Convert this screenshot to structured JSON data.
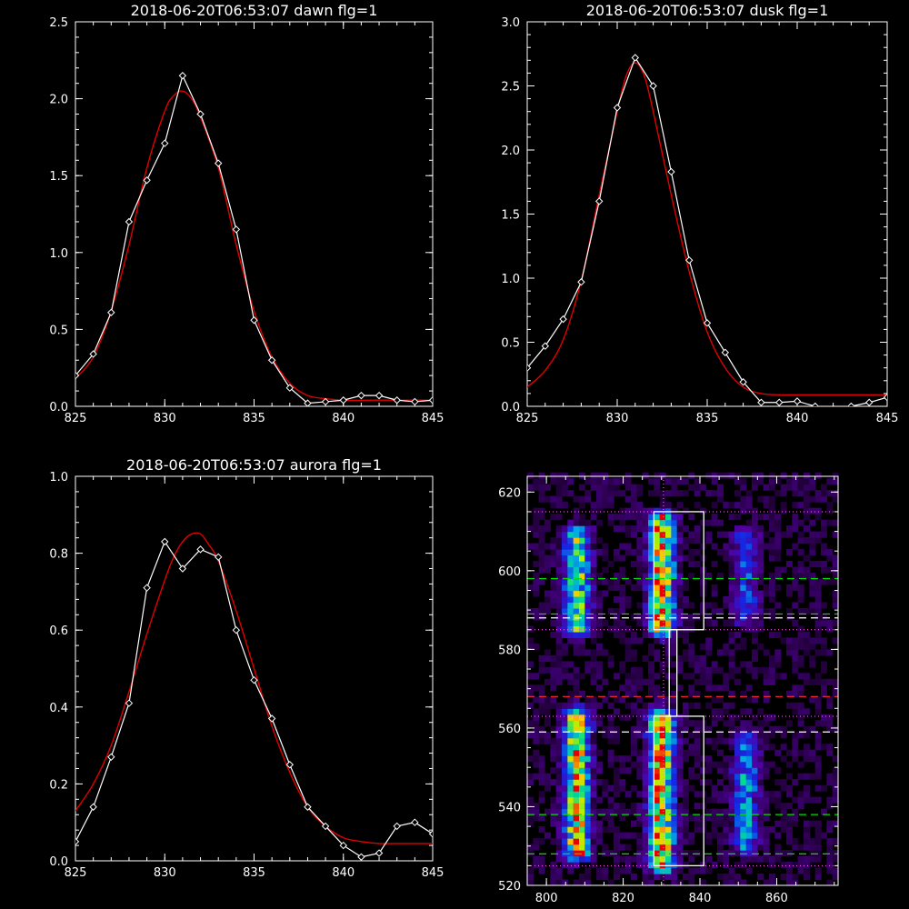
{
  "chart_data": [
    {
      "type": "line",
      "title": "2018-06-20T06:53:07 dawn flg=1",
      "xlim": [
        825,
        845
      ],
      "ylim": [
        0,
        2.5
      ],
      "xticks": [
        "825",
        "830",
        "835",
        "840",
        "845"
      ],
      "yticks": [
        "0.0",
        "0.5",
        "1.0",
        "1.5",
        "2.0",
        "2.5"
      ],
      "series": [
        {
          "role": "data",
          "color": "#ffffff",
          "marker": "diamond",
          "x": [
            825,
            826,
            827,
            828,
            829,
            830,
            831,
            832,
            833,
            834,
            835,
            836,
            837,
            838,
            839,
            840,
            841,
            842,
            843,
            844,
            845
          ],
          "y": [
            0.2,
            0.34,
            0.61,
            1.2,
            1.47,
            1.71,
            2.15,
            1.9,
            1.58,
            1.15,
            0.56,
            0.3,
            0.12,
            0.02,
            0.03,
            0.04,
            0.07,
            0.07,
            0.04,
            0.03,
            0.04
          ]
        },
        {
          "role": "fit",
          "color": "#e00000",
          "x": [
            825,
            826,
            827,
            828,
            829,
            830,
            830.5,
            831,
            831.5,
            832,
            833,
            834,
            835,
            836,
            837,
            838,
            839,
            840,
            842,
            845
          ],
          "y": [
            0.18,
            0.32,
            0.62,
            1.05,
            1.55,
            1.92,
            2.02,
            2.05,
            2.0,
            1.88,
            1.55,
            1.05,
            0.62,
            0.32,
            0.15,
            0.07,
            0.05,
            0.04,
            0.04,
            0.04
          ]
        }
      ]
    },
    {
      "type": "line",
      "title": "2018-06-20T06:53:07 dusk flg=1",
      "xlim": [
        825,
        845
      ],
      "ylim": [
        0,
        3.0
      ],
      "xticks": [
        "825",
        "830",
        "835",
        "840",
        "845"
      ],
      "yticks": [
        "0.0",
        "0.5",
        "1.0",
        "1.5",
        "2.0",
        "2.5",
        "3.0"
      ],
      "series": [
        {
          "role": "data",
          "color": "#ffffff",
          "marker": "diamond",
          "x": [
            825,
            826,
            827,
            828,
            829,
            830,
            831,
            832,
            833,
            834,
            835,
            836,
            837,
            838,
            839,
            840,
            841,
            842,
            843,
            844,
            845
          ],
          "y": [
            0.3,
            0.47,
            0.68,
            0.97,
            1.6,
            2.33,
            2.72,
            2.5,
            1.83,
            1.14,
            0.65,
            0.42,
            0.19,
            0.03,
            0.03,
            0.04,
            0.0,
            -0.02,
            0.0,
            0.03,
            0.07
          ]
        },
        {
          "role": "fit",
          "color": "#e00000",
          "x": [
            825,
            826,
            827,
            828,
            829,
            830,
            830.5,
            831,
            831.5,
            832,
            833,
            834,
            835,
            836,
            837,
            838,
            839,
            840,
            842,
            845
          ],
          "y": [
            0.15,
            0.28,
            0.52,
            0.98,
            1.65,
            2.3,
            2.58,
            2.68,
            2.58,
            2.3,
            1.65,
            1.05,
            0.58,
            0.3,
            0.15,
            0.1,
            0.09,
            0.09,
            0.09,
            0.09
          ]
        }
      ]
    },
    {
      "type": "line",
      "title": "2018-06-20T06:53:07 aurora flg=1",
      "xlim": [
        825,
        845
      ],
      "ylim": [
        0,
        1.0
      ],
      "xticks": [
        "825",
        "830",
        "835",
        "840",
        "845"
      ],
      "yticks": [
        "0.0",
        "0.2",
        "0.4",
        "0.6",
        "0.8",
        "1.0"
      ],
      "series": [
        {
          "role": "data",
          "color": "#ffffff",
          "marker": "diamond",
          "x": [
            825,
            826,
            827,
            828,
            829,
            830,
            831,
            832,
            833,
            834,
            835,
            836,
            837,
            838,
            839,
            840,
            841,
            842,
            843,
            844,
            845
          ],
          "y": [
            0.05,
            0.14,
            0.27,
            0.41,
            0.71,
            0.83,
            0.76,
            0.81,
            0.79,
            0.6,
            0.47,
            0.37,
            0.25,
            0.14,
            0.09,
            0.04,
            0.01,
            0.02,
            0.09,
            0.1,
            0.07
          ]
        },
        {
          "role": "fit",
          "color": "#e00000",
          "x": [
            825,
            826,
            827,
            828,
            829,
            830,
            830.5,
            831,
            831.5,
            832,
            832.5,
            833,
            834,
            835,
            836,
            837,
            838,
            839,
            840,
            841,
            842,
            843,
            845
          ],
          "y": [
            0.13,
            0.2,
            0.3,
            0.44,
            0.59,
            0.73,
            0.79,
            0.83,
            0.85,
            0.85,
            0.82,
            0.78,
            0.65,
            0.5,
            0.35,
            0.23,
            0.14,
            0.09,
            0.06,
            0.05,
            0.045,
            0.045,
            0.045
          ]
        }
      ]
    },
    {
      "type": "heatmap",
      "title": "",
      "xlim": [
        795,
        876
      ],
      "ylim": [
        520,
        624
      ],
      "xticks": [
        "800",
        "820",
        "840",
        "860"
      ],
      "yticks": [
        "520",
        "540",
        "560",
        "580",
        "600",
        "620"
      ],
      "bright_bands": [
        {
          "x": 808,
          "y_range": [
            585,
            608
          ],
          "level": 0.75
        },
        {
          "x": 808,
          "y_range": [
            528,
            562
          ],
          "level": 0.9
        },
        {
          "x": 830,
          "y_range": [
            585,
            612
          ],
          "level": 1.0
        },
        {
          "x": 830,
          "y_range": [
            525,
            562
          ],
          "level": 1.0
        },
        {
          "x": 852,
          "y_range": [
            588,
            608
          ],
          "level": 0.35
        },
        {
          "x": 852,
          "y_range": [
            530,
            556
          ],
          "level": 0.55
        }
      ],
      "boxes": [
        {
          "x_range": [
            828,
            841
          ],
          "y_range": [
            585,
            615
          ]
        },
        {
          "x_range": [
            828,
            841
          ],
          "y_range": [
            525,
            563
          ]
        },
        {
          "x_range": [
            832,
            834
          ],
          "y_range": [
            563,
            585
          ]
        }
      ],
      "dotted_lines": {
        "color": "#ff66ff",
        "y": [
          615,
          585,
          563,
          525
        ],
        "x": [
          830.5
        ]
      },
      "dashed_lines": [
        {
          "color": "#00e000",
          "y": 598
        },
        {
          "color": "#00e000",
          "y": 589
        },
        {
          "color": "#ffffff",
          "y": 588
        },
        {
          "color": "#ff3030",
          "y": 568
        },
        {
          "color": "#ffffff",
          "y": 559
        },
        {
          "color": "#00e000",
          "y": 538
        },
        {
          "color": "#00e000",
          "y": 528
        }
      ]
    }
  ]
}
